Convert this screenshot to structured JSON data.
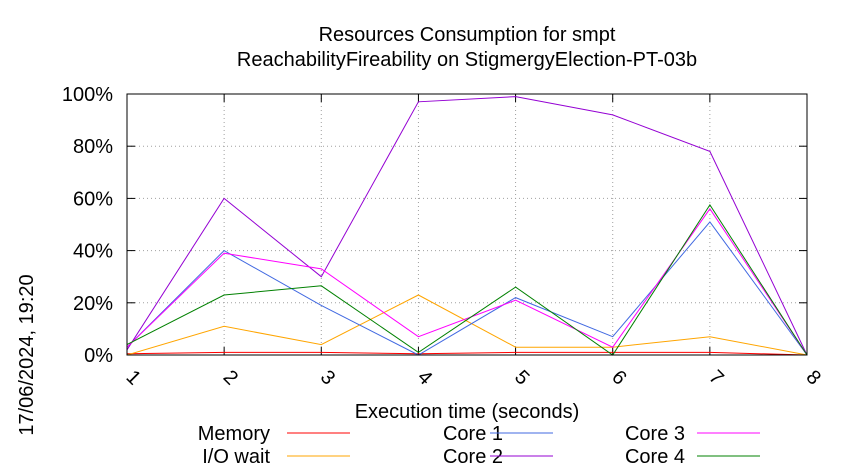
{
  "chart_data": {
    "type": "line",
    "title": "Resources Consumption for smpt",
    "subtitle": "ReachabilityFireability on StigmergyElection-PT-03b",
    "xlabel": "Execution time (seconds)",
    "ylabel": "",
    "timestamp": "17/06/2024, 19:20",
    "x": [
      1,
      2,
      3,
      4,
      5,
      6,
      7,
      8
    ],
    "xlim": [
      1,
      8
    ],
    "ylim": [
      0,
      100
    ],
    "x_ticks": [
      "1",
      "2",
      "3",
      "4",
      "5",
      "6",
      "7",
      "8"
    ],
    "y_ticks": [
      "0%",
      "20%",
      "40%",
      "60%",
      "80%",
      "100%"
    ],
    "grid": true,
    "legend_position": "bottom",
    "series": [
      {
        "name": "Memory",
        "color": "#ff0000",
        "values": [
          0.5,
          1,
          1,
          0.5,
          1,
          1,
          1,
          0
        ]
      },
      {
        "name": "I/O wait",
        "color": "#ffa500",
        "values": [
          0,
          11,
          4,
          23,
          3,
          3,
          7,
          0
        ]
      },
      {
        "name": "Core 1",
        "color": "#4169e1",
        "values": [
          3,
          40,
          19,
          0,
          22,
          7,
          51,
          0
        ]
      },
      {
        "name": "Core 2",
        "color": "#9400d3",
        "values": [
          2,
          60,
          30,
          97,
          99,
          92,
          78,
          0
        ]
      },
      {
        "name": "Core 3",
        "color": "#ff00ff",
        "values": [
          3,
          39,
          33,
          7,
          21,
          3,
          56,
          0
        ]
      },
      {
        "name": "Core 4",
        "color": "#008000",
        "values": [
          4,
          23,
          26.5,
          1,
          26,
          0,
          57.5,
          0
        ]
      }
    ]
  }
}
